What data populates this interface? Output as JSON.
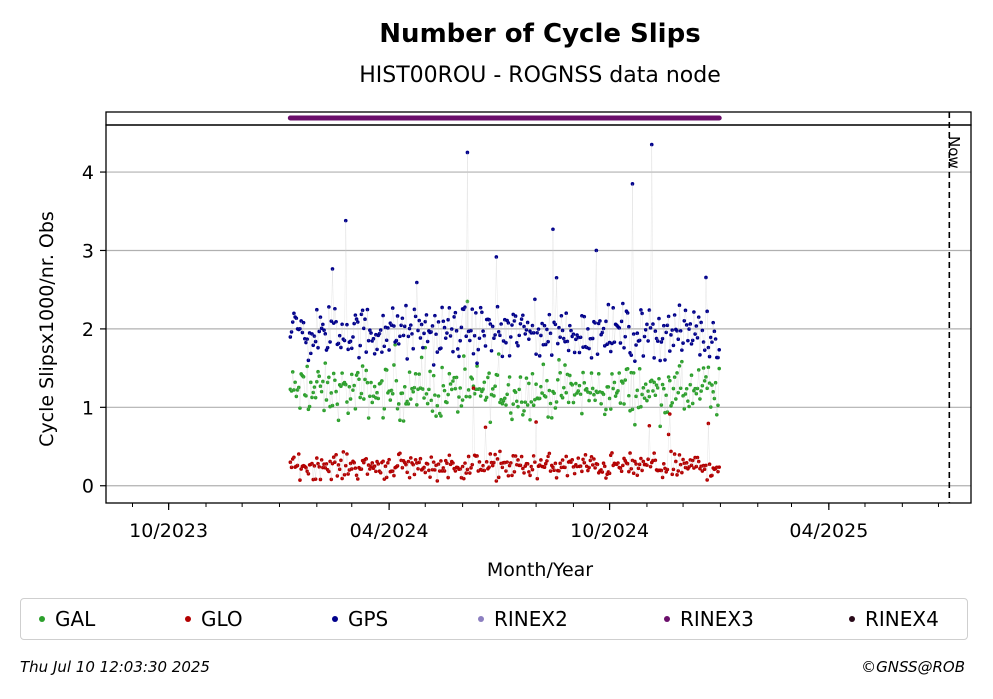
{
  "chart_data": {
    "type": "scatter",
    "title": "Number of Cycle Slips",
    "subtitle": "HIST00ROU - ROGNSS data node",
    "xlabel": "Month/Year",
    "ylabel": "Cycle Slipsx1000/nr. Obs",
    "x_ticks": [
      "10/2023",
      "04/2024",
      "10/2024",
      "04/2025"
    ],
    "y_ticks": [
      0,
      1,
      2,
      3,
      4
    ],
    "ylim": [
      -0.22,
      4.6
    ],
    "xlim": [
      "2023-08-10",
      "2025-07-28"
    ],
    "grid": "horizontal",
    "now_label": "Now",
    "now_date": "2025-07-10",
    "data_range": {
      "start": "2024-01-10",
      "end": "2024-12-31"
    },
    "series": [
      {
        "name": "GAL",
        "color": "#2ca02c",
        "mean": 1.2,
        "spread": 0.25,
        "min": 0.5,
        "max": 2.35,
        "sample_x": [
          "2024-01-15",
          "2024-03-15",
          "2024-05-15",
          "2024-07-15",
          "2024-09-15",
          "2024-11-15"
        ],
        "sample_y": [
          1.3,
          1.2,
          1.0,
          1.3,
          1.1,
          1.1
        ]
      },
      {
        "name": "GLO",
        "color": "#b30000",
        "mean": 0.25,
        "spread": 0.12,
        "min": 0.0,
        "max": 1.5,
        "sample_x": [
          "2024-01-15",
          "2024-03-15",
          "2024-05-15",
          "2024-07-15",
          "2024-09-15",
          "2024-11-15"
        ],
        "sample_y": [
          0.45,
          0.35,
          0.2,
          0.25,
          0.15,
          0.15
        ]
      },
      {
        "name": "GPS",
        "color": "#00008b",
        "mean": 1.95,
        "spread": 0.25,
        "min": 1.1,
        "max": 4.35,
        "sample_x": [
          "2024-01-15",
          "2024-03-15",
          "2024-05-15",
          "2024-07-15",
          "2024-09-15",
          "2024-11-15"
        ],
        "sample_y": [
          2.0,
          1.9,
          2.0,
          2.1,
          1.9,
          1.9
        ],
        "peaks": [
          {
            "x": "2024-02-25",
            "y": 3.38
          },
          {
            "x": "2024-06-05",
            "y": 4.25
          },
          {
            "x": "2024-08-15",
            "y": 3.27
          },
          {
            "x": "2024-09-20",
            "y": 3.0
          },
          {
            "x": "2024-10-20",
            "y": 3.85
          },
          {
            "x": "2024-11-05",
            "y": 4.35
          }
        ]
      },
      {
        "name": "RINEX2",
        "color": "#8c7fc0"
      },
      {
        "name": "RINEX3",
        "color": "#6b0f6b"
      },
      {
        "name": "RINEX4",
        "color": "#2a0a1a"
      }
    ]
  },
  "legend": [
    "GAL",
    "GLO",
    "GPS",
    "RINEX2",
    "RINEX3",
    "RINEX4"
  ],
  "footer": {
    "timestamp": "Thu Jul 10 12:03:30 2025",
    "credit": "©GNSS@ROB"
  }
}
